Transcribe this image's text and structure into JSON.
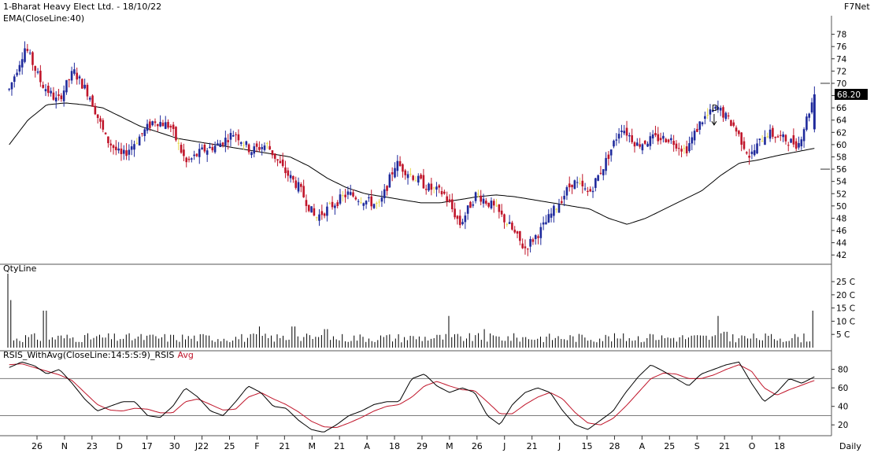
{
  "header": {
    "title": "1-Bharat Heavy Elect Ltd. - 18/10/22",
    "brand": "F7Net"
  },
  "panels": {
    "price_label": "EMA(CloseLine:40)",
    "volume_label": "QtyLine",
    "rsi_label": "RSIS_WithAvg(CloseLine:14:5:S:9)_RSIS",
    "rsi_avg_label": "Avg",
    "period": "Daily"
  },
  "colors": {
    "up": "#1f2a9c",
    "down": "#c0152a",
    "doji": "#e8d84a",
    "ema": "#000000",
    "rsi": "#000000",
    "rsi_avg": "#c0152a",
    "grid": "#7a7a7a"
  },
  "chart_data": {
    "type": "candlestick",
    "price": {
      "yticks": [
        42,
        44,
        46,
        48,
        50,
        52,
        54,
        56,
        58,
        60,
        62,
        64,
        66,
        68,
        70,
        72,
        74,
        76,
        78
      ],
      "ylim": [
        41,
        80
      ],
      "last_price": "68.20",
      "annotation": "D",
      "close_path": [
        69,
        76,
        70,
        67,
        72,
        68,
        61,
        58,
        61,
        64,
        63,
        57,
        59,
        60,
        62,
        59,
        60,
        56,
        53,
        48,
        50,
        52,
        51,
        50,
        57,
        55,
        53,
        52,
        47,
        52,
        50,
        47,
        43,
        46,
        50,
        54,
        52,
        57,
        63,
        60,
        61,
        61,
        59,
        64,
        66,
        63,
        58,
        62,
        61,
        60,
        68.2
      ],
      "ema_path": [
        60,
        64,
        66.5,
        66.8,
        66.5,
        66,
        64.5,
        63,
        62,
        61,
        60.5,
        60,
        59.5,
        59,
        58.5,
        58,
        56.5,
        54.5,
        53,
        52,
        51.5,
        51,
        50.5,
        50.5,
        51,
        51.5,
        51.8,
        51.5,
        51,
        50.5,
        50,
        49.5,
        48,
        47,
        48,
        49.5,
        51,
        52.5,
        55,
        57,
        57.5,
        58.2,
        58.8,
        59.4
      ]
    },
    "volume": {
      "yticks_labels": [
        "5 C",
        "10 C",
        "15 C",
        "20 C",
        "25 C"
      ],
      "yticks": [
        5,
        10,
        15,
        20,
        25
      ],
      "ylim": [
        0,
        28
      ],
      "spikes": [
        [
          0,
          28
        ],
        [
          2,
          18
        ],
        [
          25,
          14
        ],
        [
          170,
          8
        ],
        [
          193,
          8
        ],
        [
          215,
          7
        ],
        [
          298,
          12
        ],
        [
          322,
          7
        ],
        [
          436,
          5
        ],
        [
          480,
          12
        ],
        [
          485,
          6
        ],
        [
          545,
          14
        ]
      ]
    },
    "rsi": {
      "yticks": [
        20,
        40,
        60,
        80
      ],
      "ylim": [
        10,
        95
      ],
      "hlines": [
        30,
        70
      ],
      "rsi_path": [
        82,
        88,
        84,
        75,
        80,
        65,
        48,
        35,
        40,
        45,
        45,
        30,
        28,
        40,
        60,
        50,
        35,
        30,
        45,
        62,
        55,
        40,
        38,
        25,
        15,
        12,
        20,
        30,
        35,
        42,
        45,
        45,
        70,
        75,
        62,
        55,
        60,
        55,
        30,
        20,
        42,
        55,
        60,
        55,
        35,
        20,
        15,
        25,
        35,
        55,
        72,
        85,
        78,
        70,
        62,
        75,
        80,
        85,
        88,
        65,
        45,
        55,
        70,
        65,
        72
      ],
      "avg_path": [
        85,
        86,
        82,
        78,
        74,
        68,
        55,
        42,
        36,
        35,
        38,
        37,
        33,
        33,
        45,
        48,
        42,
        36,
        37,
        50,
        55,
        48,
        42,
        34,
        24,
        18,
        17,
        22,
        28,
        35,
        40,
        42,
        50,
        62,
        67,
        62,
        58,
        57,
        45,
        32,
        32,
        42,
        50,
        55,
        48,
        33,
        22,
        20,
        27,
        40,
        55,
        70,
        76,
        75,
        70,
        70,
        74,
        80,
        85,
        78,
        60,
        52,
        58,
        63,
        68
      ]
    },
    "x_axis": {
      "labels": [
        "26",
        "N",
        "23",
        "D",
        "17",
        "30",
        "J22",
        "25",
        "F",
        "21",
        "M",
        "21",
        "A",
        "18",
        "29",
        "M",
        "26",
        "J",
        "21",
        "J",
        "15",
        "28",
        "A",
        "25",
        "S",
        "21",
        "O",
        "18"
      ]
    }
  }
}
